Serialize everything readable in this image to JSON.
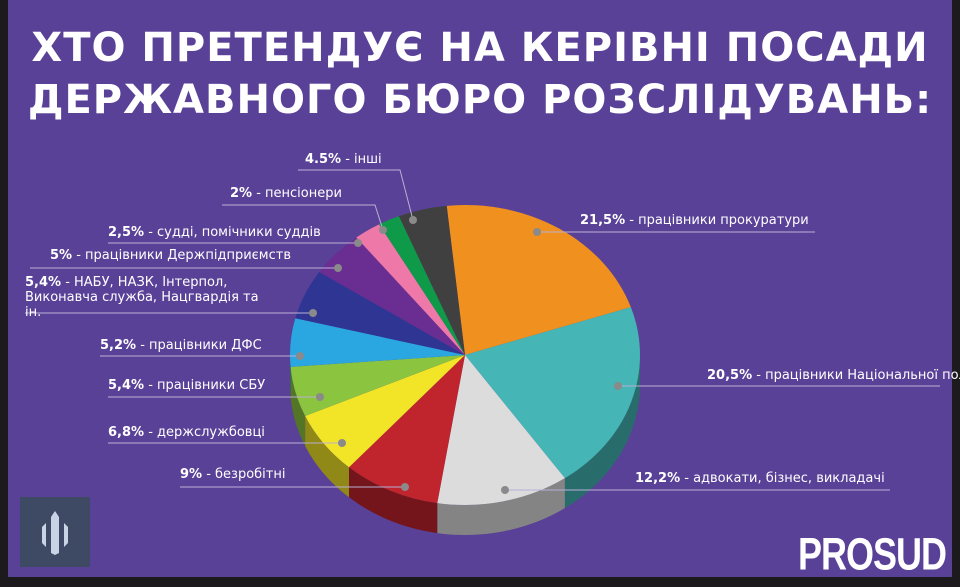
{
  "title_lines": [
    "ХТО ПРЕТЕНДУЄ НА КЕРІВНІ ПОСАДИ",
    "ДЕРЖАВНОГО БЮРО РОЗСЛІДУВАНЬ:"
  ],
  "brand": "PROSUD",
  "chart_data": {
    "type": "pie",
    "title": "ХТО ПРЕТЕНДУЄ НА КЕРІВНІ ПОСАДИ ДЕРЖАВНОГО БЮРО РОЗСЛІДУВАНЬ:",
    "slices": [
      {
        "pct": "21,5%",
        "value": 21.5,
        "label": "працівники прокуратури",
        "color": "#f0901e"
      },
      {
        "pct": "20,5%",
        "value": 20.5,
        "label": "працівники Національної поліції",
        "color": "#45b5b5"
      },
      {
        "pct": "12,2%",
        "value": 12.2,
        "label": "адвокати, бізнес, викладачі",
        "color": "#dcdcdc"
      },
      {
        "pct": "9%",
        "value": 9,
        "label": "безробітні",
        "color": "#c0242c"
      },
      {
        "pct": "6,8%",
        "value": 6.8,
        "label": "держслужбовці",
        "color": "#f2e527"
      },
      {
        "pct": "5,4%",
        "value": 5.4,
        "label": "працівники СБУ",
        "color": "#8bc43f"
      },
      {
        "pct": "5,2%",
        "value": 5.2,
        "label": "працівники ДФС",
        "color": "#2aa6e0"
      },
      {
        "pct": "5,4%",
        "value": 5.4,
        "label": "НАБУ, НАЗК, Інтерпол, Виконавча служба, Нацгвардія та ін.",
        "color": "#2e3592"
      },
      {
        "pct": "5%",
        "value": 5,
        "label": "працівники Держпідприємств",
        "color": "#6a2d91"
      },
      {
        "pct": "2,5%",
        "value": 2.5,
        "label": "судді, помічники суддів",
        "color": "#ee78a8"
      },
      {
        "pct": "2%",
        "value": 2,
        "label": "пенсіонери",
        "color": "#0e9a48"
      },
      {
        "pct": "4.5%",
        "value": 4.5,
        "label": "інші",
        "color": "#404040"
      }
    ]
  }
}
